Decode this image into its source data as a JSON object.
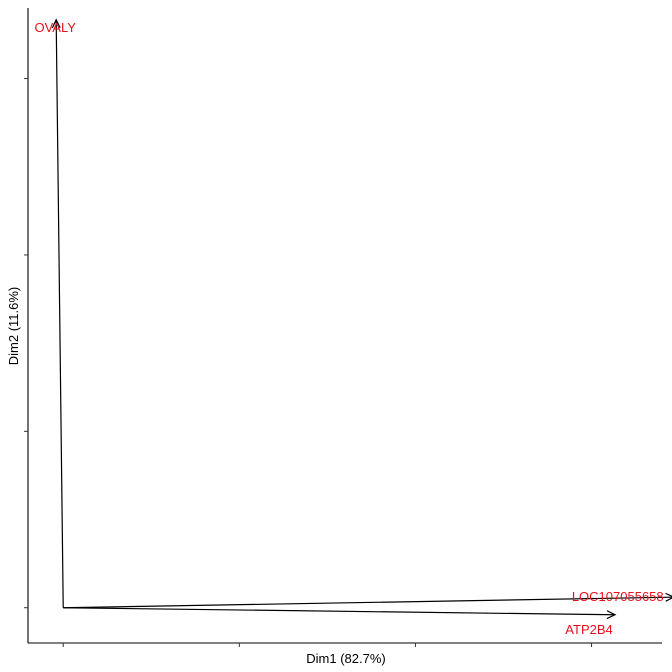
{
  "chart_data": {
    "type": "biplot",
    "title": "",
    "xlabel": "Dim1 (82.7%)",
    "ylabel": "Dim2 (11.6%)",
    "xlim": [
      -0.06,
      1.02
    ],
    "ylim": [
      -0.06,
      1.02
    ],
    "x_ticks": [
      0.0,
      0.3,
      0.6,
      0.9
    ],
    "y_ticks": [
      0.0,
      0.3,
      0.6,
      0.9
    ],
    "grid": false,
    "tick_labels_visible": false,
    "arrow_color": "#000000",
    "label_color": "#e8101c",
    "arrows": [
      {
        "label": "OVALY",
        "x": -0.012,
        "y": 1.0
      },
      {
        "label": "LOC107055658",
        "x": 1.04,
        "y": 0.018
      },
      {
        "label": "ATP2B4",
        "x": 0.94,
        "y": -0.012
      }
    ]
  }
}
